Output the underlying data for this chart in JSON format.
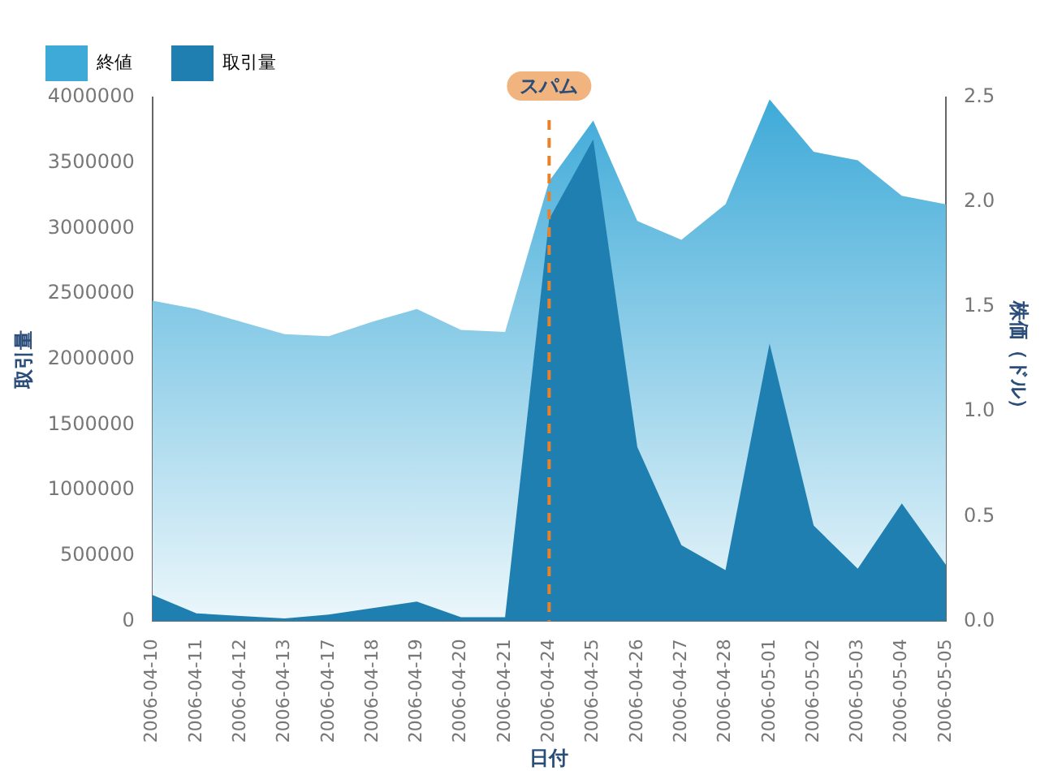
{
  "chart_data": {
    "type": "area",
    "xlabel": "日付",
    "ylabel": "取引量",
    "y2label": "株価（ドル）",
    "categories": [
      "2006-04-10",
      "2006-04-11",
      "2006-04-12",
      "2006-04-13",
      "2006-04-17",
      "2006-04-18",
      "2006-04-19",
      "2006-04-20",
      "2006-04-21",
      "2006-04-24",
      "2006-04-25",
      "2006-04-26",
      "2006-04-27",
      "2006-04-28",
      "2006-05-01",
      "2006-05-02",
      "2006-05-03",
      "2006-05-04",
      "2006-05-05"
    ],
    "series": [
      {
        "name": "終値",
        "color": "#3eaad8",
        "axis": "y2",
        "values": [
          1.53,
          1.49,
          1.43,
          1.37,
          1.36,
          1.43,
          1.49,
          1.39,
          1.38,
          2.1,
          2.39,
          1.91,
          1.82,
          1.99,
          2.49,
          2.24,
          2.2,
          2.03,
          1.99
        ]
      },
      {
        "name": "取引量",
        "color": "#1f7fb0",
        "values": [
          200000,
          60000,
          40000,
          20000,
          50000,
          100000,
          150000,
          30000,
          30000,
          3070000,
          3680000,
          1330000,
          580000,
          390000,
          2120000,
          730000,
          400000,
          900000,
          430000
        ]
      }
    ],
    "ylim": [
      0,
      4000000
    ],
    "yticks": [
      0,
      500000,
      1000000,
      1500000,
      2000000,
      2500000,
      3000000,
      3500000,
      4000000
    ],
    "y2lim": [
      0,
      2.5
    ],
    "y2ticks": [
      {
        "value": 0,
        "label": "0.0"
      },
      0.5,
      {
        "value": 1,
        "label": "1.0"
      },
      1.5,
      {
        "value": 2,
        "label": "2.0"
      },
      2.5
    ],
    "ref_lines": [
      {
        "axis": "x",
        "value": "2006-04-24",
        "label": "スパム",
        "color": "#e8822a",
        "line_style": "dashed"
      }
    ],
    "grid": false,
    "legend": "top left"
  }
}
